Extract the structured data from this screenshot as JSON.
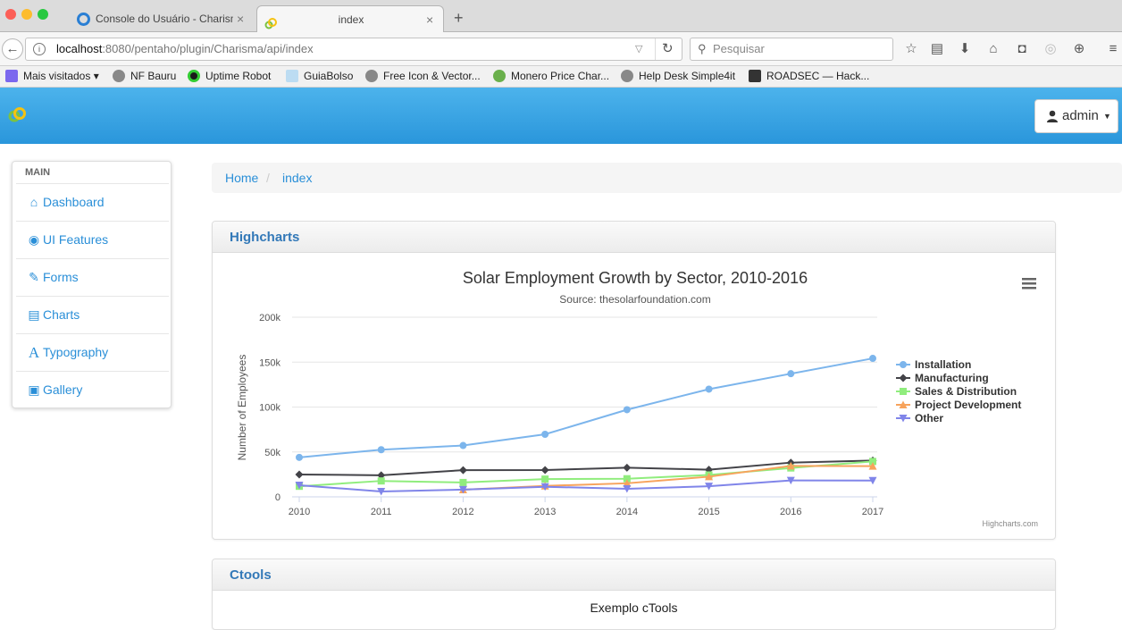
{
  "browser": {
    "tabs": [
      {
        "title": "Console do Usuário - Charism",
        "close": "×"
      },
      {
        "title": "index",
        "close": "×"
      }
    ],
    "new_tab": "+",
    "url_host": "localhost",
    "url_rest": ":8080/pentaho/plugin/Charisma/api/index",
    "search_placeholder": "Pesquisar",
    "bookmarks": [
      {
        "label": "Mais visitados ▾",
        "color": "#7b68ee"
      },
      {
        "label": "NF Bauru",
        "color": "#888888"
      },
      {
        "label": "Uptime Robot",
        "color": "#1a1a1a"
      },
      {
        "label": "GuiaBolso",
        "color": "#4aa3df"
      },
      {
        "label": "Free Icon & Vector...",
        "color": "#888888"
      },
      {
        "label": "Monero Price Char...",
        "color": "#6ab04c"
      },
      {
        "label": "Help Desk Simple4it",
        "color": "#888888"
      },
      {
        "label": "ROADSEC — Hack...",
        "color": "#333333"
      }
    ]
  },
  "header": {
    "user_label": "admin"
  },
  "sidebar": {
    "section": "MAIN",
    "items": [
      {
        "label": "Dashboard",
        "icon": "home-icon",
        "glyph": "⌂"
      },
      {
        "label": "UI Features",
        "icon": "eye-icon",
        "glyph": "◉"
      },
      {
        "label": "Forms",
        "icon": "edit-icon",
        "glyph": "✎"
      },
      {
        "label": "Charts",
        "icon": "list-alt-icon",
        "glyph": "▤"
      },
      {
        "label": "Typography",
        "icon": "font-icon",
        "glyph": "A"
      },
      {
        "label": "Gallery",
        "icon": "picture-icon",
        "glyph": "▣"
      }
    ]
  },
  "breadcrumb": {
    "home": "Home",
    "separator": "/",
    "current": "index"
  },
  "panels": {
    "highcharts_title": "Highcharts",
    "ctools_title": "Ctools",
    "ctools_body": "Exemplo cTools"
  },
  "chart_data": {
    "type": "line",
    "title": "Solar Employment Growth by Sector, 2010-2016",
    "subtitle": "Source: thesolarfoundation.com",
    "ylabel": "Number of Employees",
    "xlabel": "",
    "x": [
      2010,
      2011,
      2012,
      2013,
      2014,
      2015,
      2016,
      2017
    ],
    "ylim": [
      0,
      200000
    ],
    "y_ticks": [
      0,
      50000,
      100000,
      150000,
      200000
    ],
    "y_tick_labels": [
      "0",
      "50k",
      "100k",
      "150k",
      "200k"
    ],
    "grid": true,
    "legend": "right",
    "credits": "Highcharts.com",
    "series": [
      {
        "name": "Installation",
        "color": "#7cb5ec",
        "marker": "circle",
        "values": [
          43934,
          52503,
          57177,
          69658,
          97031,
          119931,
          137133,
          154175
        ]
      },
      {
        "name": "Manufacturing",
        "color": "#434348",
        "marker": "diamond",
        "values": [
          24916,
          24064,
          29742,
          29851,
          32490,
          30282,
          38121,
          40434
        ]
      },
      {
        "name": "Sales & Distribution",
        "color": "#90ed7d",
        "marker": "square",
        "values": [
          11744,
          17722,
          16005,
          19771,
          20185,
          24377,
          32147,
          39387
        ]
      },
      {
        "name": "Project Development",
        "color": "#f7a35c",
        "marker": "triangle",
        "values": [
          null,
          null,
          7988,
          12169,
          15112,
          22452,
          34400,
          34227
        ]
      },
      {
        "name": "Other",
        "color": "#8085e9",
        "marker": "triangle-down",
        "values": [
          12908,
          5948,
          8105,
          11248,
          8989,
          11816,
          18274,
          18111
        ]
      }
    ]
  }
}
